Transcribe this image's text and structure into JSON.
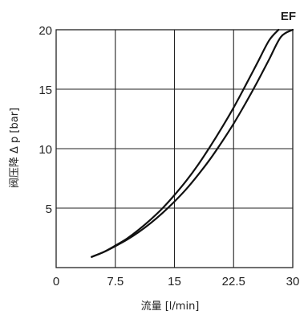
{
  "chart_data": {
    "type": "line",
    "title": "EF",
    "xlabel": "流量 [l/min]",
    "ylabel": "阀压降 Δ p [bar]",
    "xlim": [
      0,
      30
    ],
    "ylim": [
      0,
      20
    ],
    "xticks": [
      0,
      7.5,
      15,
      22.5,
      30
    ],
    "xtick_labels": [
      "0",
      "7.5",
      "15",
      "22.5",
      "30"
    ],
    "yticks": [
      5,
      10,
      15,
      20
    ],
    "ytick_labels": [
      "5",
      "10",
      "15",
      "20"
    ],
    "grid": true,
    "series": [
      {
        "x": [
          4.5,
          6.0,
          7.5,
          9.0,
          10.5,
          12.0,
          13.5,
          15.0,
          16.5,
          18.0,
          19.5,
          21.0,
          22.5,
          24.0,
          25.5,
          27.0,
          28.2
        ],
        "y": [
          0.9,
          1.3,
          1.85,
          2.45,
          3.2,
          4.05,
          5.0,
          6.1,
          7.3,
          8.65,
          10.15,
          11.75,
          13.45,
          15.3,
          17.2,
          19.1,
          20.0
        ]
      },
      {
        "x": [
          4.5,
          6.0,
          7.5,
          9.0,
          10.5,
          12.0,
          13.5,
          15.0,
          16.5,
          18.0,
          19.5,
          21.0,
          22.5,
          24.0,
          25.5,
          27.0,
          28.5,
          30.0
        ],
        "y": [
          0.9,
          1.3,
          1.8,
          2.35,
          3.0,
          3.75,
          4.6,
          5.55,
          6.6,
          7.8,
          9.1,
          10.55,
          12.1,
          13.8,
          15.6,
          17.5,
          19.4,
          20.0
        ]
      }
    ]
  }
}
